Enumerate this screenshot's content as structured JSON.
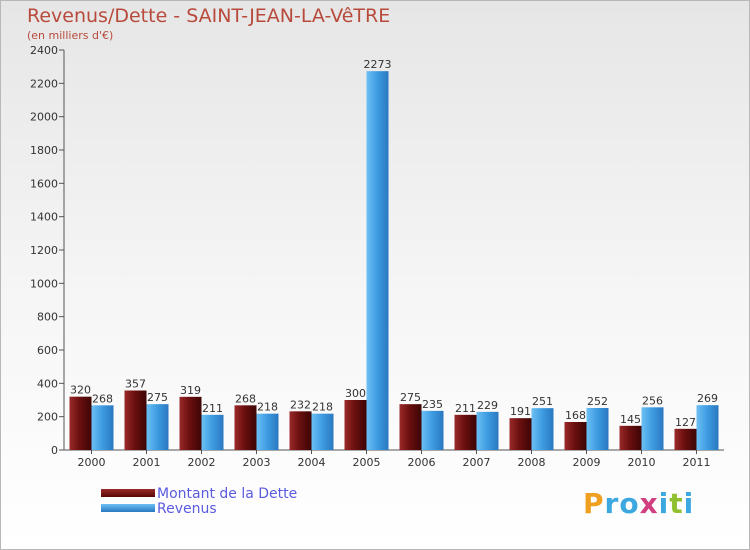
{
  "chart_data": {
    "type": "bar",
    "title": "Revenus/Dette - SAINT-JEAN-LA-VêTRE",
    "subtitle": "(en milliers d'€)",
    "categories": [
      "2000",
      "2001",
      "2002",
      "2003",
      "2004",
      "2005",
      "2006",
      "2007",
      "2008",
      "2009",
      "2010",
      "2011"
    ],
    "series": [
      {
        "name": "Montant de la Dette",
        "color": "#6b0f0f",
        "values": [
          320,
          357,
          319,
          268,
          232,
          300,
          275,
          211,
          191,
          168,
          145,
          127
        ]
      },
      {
        "name": "Revenus",
        "color": "#3d9be0",
        "values": [
          268,
          275,
          211,
          218,
          218,
          2273,
          235,
          229,
          251,
          252,
          256,
          269
        ]
      }
    ],
    "ylim": [
      0,
      2400
    ],
    "yticks": [
      0,
      200,
      400,
      600,
      800,
      1000,
      1200,
      1400,
      1600,
      1800,
      2000,
      2200,
      2400
    ],
    "xlabel": "",
    "ylabel": "",
    "grid": false,
    "legend": "bottom-left"
  },
  "logo": {
    "letters": [
      "P",
      "r",
      "o",
      "x",
      "i",
      "t",
      "i"
    ],
    "colors": [
      "#f0a020",
      "#3da8e0",
      "#3da8e0",
      "#d04080",
      "#3da8e0",
      "#90c030",
      "#3da8e0"
    ]
  }
}
